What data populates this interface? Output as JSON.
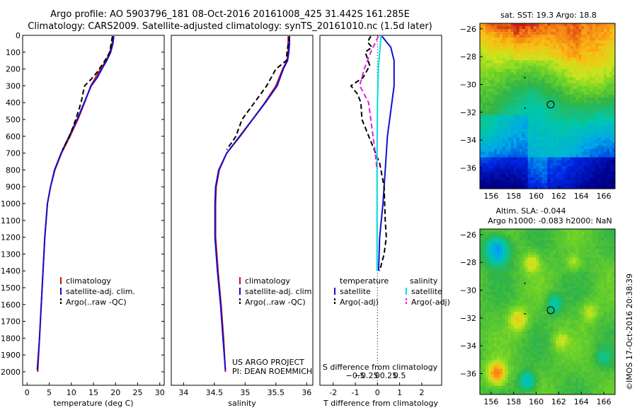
{
  "title": {
    "line1": "Argo profile: AO 5903796_181 08-Oct-2016 20161008_425 31.442S 161.285E",
    "line2": "Climatology: CARS2009. Satellite-adjusted climatology: synTS_20161010.nc (1.5d later)"
  },
  "colors": {
    "climatology": "#d01010",
    "satellite": "#1010d0",
    "argo": "#000000",
    "sal_sat": "#00e0e0",
    "sal_argo": "#e020e0"
  },
  "chart_data": [
    {
      "type": "line",
      "id": "temperature",
      "xlabel": "temperature (deg C)",
      "ylabel": "",
      "xlim": [
        -1,
        31
      ],
      "ylim": [
        2080,
        0
      ],
      "xticks": [
        0,
        5,
        10,
        15,
        20,
        25,
        30
      ],
      "yticks": [
        0,
        100,
        200,
        300,
        400,
        500,
        600,
        700,
        800,
        900,
        1000,
        1100,
        1200,
        1300,
        1400,
        1500,
        1600,
        1700,
        1800,
        1900,
        2000
      ],
      "legend": [
        "climatology",
        "satellite-adj. clim.",
        "Argo(..raw -QC)"
      ],
      "series": [
        {
          "name": "climatology",
          "style": "solid",
          "points": [
            [
              19.4,
              5
            ],
            [
              19.2,
              50
            ],
            [
              18.7,
              100
            ],
            [
              17.9,
              150
            ],
            [
              16.6,
              200
            ],
            [
              15.5,
              250
            ],
            [
              14.4,
              300
            ],
            [
              13.0,
              400
            ],
            [
              11.5,
              500
            ],
            [
              9.7,
              600
            ],
            [
              7.8,
              700
            ],
            [
              6.3,
              800
            ],
            [
              5.3,
              900
            ],
            [
              4.6,
              1000
            ],
            [
              4.0,
              1200
            ],
            [
              3.6,
              1400
            ],
            [
              3.2,
              1600
            ],
            [
              2.8,
              1800
            ],
            [
              2.4,
              2000
            ]
          ]
        },
        {
          "name": "satellite-adj. clim.",
          "style": "solid",
          "points": [
            [
              19.6,
              5
            ],
            [
              19.4,
              50
            ],
            [
              18.9,
              100
            ],
            [
              18.0,
              150
            ],
            [
              16.9,
              200
            ],
            [
              15.9,
              250
            ],
            [
              14.5,
              300
            ],
            [
              12.9,
              400
            ],
            [
              11.3,
              500
            ],
            [
              9.5,
              600
            ],
            [
              7.7,
              700
            ],
            [
              6.2,
              800
            ],
            [
              5.3,
              900
            ],
            [
              4.6,
              1000
            ],
            [
              4.0,
              1200
            ],
            [
              3.6,
              1400
            ],
            [
              3.2,
              1600
            ],
            [
              2.8,
              1800
            ],
            [
              2.3,
              1990
            ]
          ]
        },
        {
          "name": "Argo(..raw -QC)",
          "style": "dashed",
          "points": [
            [
              19.3,
              5
            ],
            [
              19.0,
              50
            ],
            [
              18.7,
              100
            ],
            [
              17.6,
              150
            ],
            [
              15.8,
              220
            ],
            [
              14.5,
              260
            ],
            [
              13.0,
              300
            ],
            [
              12.2,
              400
            ],
            [
              11.0,
              500
            ],
            [
              9.6,
              600
            ],
            [
              8.0,
              680
            ]
          ]
        }
      ]
    },
    {
      "type": "line",
      "id": "salinity",
      "xlabel": "salinity",
      "ylabel": "",
      "xlim": [
        33.8,
        36.1
      ],
      "ylim": [
        2080,
        0
      ],
      "xticks": [
        34,
        34.5,
        35,
        35.5,
        36
      ],
      "xticklabels": [
        "34",
        "34.5",
        "35",
        "35.5",
        "36"
      ],
      "legend": [
        "climatology",
        "satellite-adj. clim.",
        "Argo(..raw -QC)"
      ],
      "annotation": [
        "US ARGO PROJECT",
        "PI: DEAN ROEMMICH"
      ],
      "series": [
        {
          "name": "climatology",
          "style": "solid",
          "points": [
            [
              35.7,
              5
            ],
            [
              35.7,
              50
            ],
            [
              35.7,
              100
            ],
            [
              35.68,
              150
            ],
            [
              35.61,
              200
            ],
            [
              35.5,
              300
            ],
            [
              35.32,
              400
            ],
            [
              35.12,
              500
            ],
            [
              34.92,
              600
            ],
            [
              34.7,
              700
            ],
            [
              34.58,
              800
            ],
            [
              34.53,
              900
            ],
            [
              34.52,
              1000
            ],
            [
              34.52,
              1200
            ],
            [
              34.56,
              1400
            ],
            [
              34.61,
              1600
            ],
            [
              34.65,
              1800
            ],
            [
              34.68,
              2000
            ]
          ]
        },
        {
          "name": "satellite-adj. clim.",
          "style": "solid",
          "points": [
            [
              35.72,
              5
            ],
            [
              35.72,
              50
            ],
            [
              35.71,
              100
            ],
            [
              35.69,
              150
            ],
            [
              35.62,
              200
            ],
            [
              35.52,
              300
            ],
            [
              35.33,
              400
            ],
            [
              35.12,
              500
            ],
            [
              34.91,
              600
            ],
            [
              34.7,
              700
            ],
            [
              34.57,
              800
            ],
            [
              34.52,
              900
            ],
            [
              34.51,
              1000
            ],
            [
              34.51,
              1200
            ],
            [
              34.55,
              1400
            ],
            [
              34.6,
              1600
            ],
            [
              34.64,
              1800
            ],
            [
              34.68,
              1990
            ]
          ]
        },
        {
          "name": "Argo(..raw -QC)",
          "style": "dashed",
          "points": [
            [
              35.72,
              5
            ],
            [
              35.7,
              50
            ],
            [
              35.68,
              100
            ],
            [
              35.67,
              150
            ],
            [
              35.5,
              200
            ],
            [
              35.35,
              300
            ],
            [
              35.15,
              400
            ],
            [
              34.95,
              500
            ],
            [
              34.85,
              600
            ],
            [
              34.7,
              680
            ]
          ]
        }
      ]
    },
    {
      "type": "line",
      "id": "difference",
      "xlabel": "T difference from climatology",
      "xlabel2": "S difference from climatology",
      "xlim": [
        -2.6,
        2.9
      ],
      "ylim": [
        2080,
        0
      ],
      "xticks": [
        -2,
        -1,
        0,
        1,
        2
      ],
      "sticks": [
        -0.5,
        -0.25,
        0,
        0.25,
        0.5
      ],
      "sticklabels": [
        "−0.5",
        "−0.25",
        "0",
        "0.25",
        "0.5"
      ],
      "legend_headers": [
        "temperature",
        "salinity"
      ],
      "legend": [
        "satellite",
        "Argo(-adj)",
        "satellite",
        "Argo(-adj)"
      ],
      "series": [
        {
          "name": "satellite",
          "group": "temperature",
          "style": "solid",
          "points": [
            [
              0.2,
              5
            ],
            [
              0.6,
              70
            ],
            [
              0.75,
              150
            ],
            [
              0.75,
              300
            ],
            [
              0.6,
              450
            ],
            [
              0.45,
              600
            ],
            [
              0.35,
              800
            ],
            [
              0.25,
              1000
            ],
            [
              0.1,
              1200
            ],
            [
              0.05,
              1400
            ]
          ]
        },
        {
          "name": "Argo(-adj)",
          "group": "temperature",
          "style": "dashed",
          "points": [
            [
              -0.3,
              5
            ],
            [
              -0.45,
              40
            ],
            [
              -0.25,
              70
            ],
            [
              -0.55,
              100
            ],
            [
              -0.35,
              180
            ],
            [
              -0.65,
              250
            ],
            [
              -1.2,
              300
            ],
            [
              -0.9,
              350
            ],
            [
              -0.75,
              400
            ],
            [
              -0.7,
              500
            ],
            [
              -0.3,
              630
            ],
            [
              0.1,
              760
            ],
            [
              0.3,
              900
            ],
            [
              0.35,
              1100
            ],
            [
              0.4,
              1200
            ],
            [
              0.3,
              1300
            ],
            [
              0.1,
              1400
            ]
          ]
        },
        {
          "name": "satellite",
          "group": "salinity",
          "style": "solid",
          "points": [
            [
              0.08,
              5
            ],
            [
              0.05,
              100
            ],
            [
              0.02,
              200
            ],
            [
              0.0,
              400
            ],
            [
              -0.01,
              700
            ],
            [
              -0.01,
              1000
            ],
            [
              -0.01,
              1400
            ]
          ]
        },
        {
          "name": "Argo(-adj)",
          "group": "salinity",
          "style": "dashed",
          "points": [
            [
              0.02,
              5
            ],
            [
              -0.15,
              100
            ],
            [
              -0.3,
              200
            ],
            [
              -0.4,
              300
            ],
            [
              -0.2,
              400
            ],
            [
              -0.15,
              500
            ],
            [
              -0.1,
              600
            ],
            [
              -0.05,
              700
            ],
            [
              -0.01,
              800
            ]
          ]
        }
      ]
    },
    {
      "type": "heatmap",
      "id": "sst-map",
      "title": "sat. SST: 19.3 Argo: 18.8",
      "xlim": [
        155,
        167
      ],
      "ylim": [
        -37.5,
        -25.6
      ],
      "xticks": [
        156,
        158,
        160,
        162,
        164,
        166
      ],
      "yticks": [
        -36,
        -34,
        -32,
        -30,
        -28,
        -26
      ],
      "marker": [
        161.285,
        -31.442
      ]
    },
    {
      "type": "heatmap",
      "id": "sla-map",
      "title1": "Altim. SLA: -0.044",
      "title2": "Argo h1000: -0.083 h2000: NaN",
      "xlim": [
        155,
        167
      ],
      "ylim": [
        -37.5,
        -25.6
      ],
      "xticks": [
        156,
        158,
        160,
        162,
        164,
        166
      ],
      "yticks": [
        -36,
        -34,
        -32,
        -30,
        -28,
        -26
      ],
      "marker": [
        161.285,
        -31.442
      ]
    }
  ],
  "footer": "©IMOS 17-Oct-2016 20:38:39"
}
